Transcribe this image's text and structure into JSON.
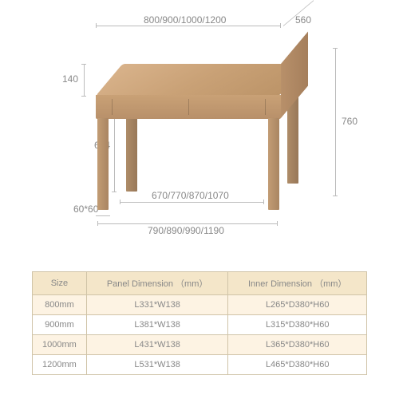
{
  "diagram": {
    "width_options": "800/900/1000/1200",
    "depth": "560",
    "height": "760",
    "apron_height": "140",
    "leg_clearance": "604",
    "inner_width": "670/770/870/1070",
    "outer_leg_span": "790/890/990/1190",
    "leg_section": "60*60",
    "desk_color_light": "#d8b28a",
    "desk_color_mid": "#c9a176",
    "desk_color_dark": "#a57f5c"
  },
  "table": {
    "header_bg": "#f4e6c9",
    "row_bg_alt": "#fdf3e3",
    "row_bg": "#ffffff",
    "columns": [
      "Size",
      "Panel Dimension （mm）",
      "Inner Dimension （mm）"
    ],
    "rows": [
      [
        "800mm",
        "L331*W138",
        "L265*D380*H60"
      ],
      [
        "900mm",
        "L381*W138",
        "L315*D380*H60"
      ],
      [
        "1000mm",
        "L431*W138",
        "L365*D380*H60"
      ],
      [
        "1200mm",
        "L531*W138",
        "L465*D380*H60"
      ]
    ]
  }
}
